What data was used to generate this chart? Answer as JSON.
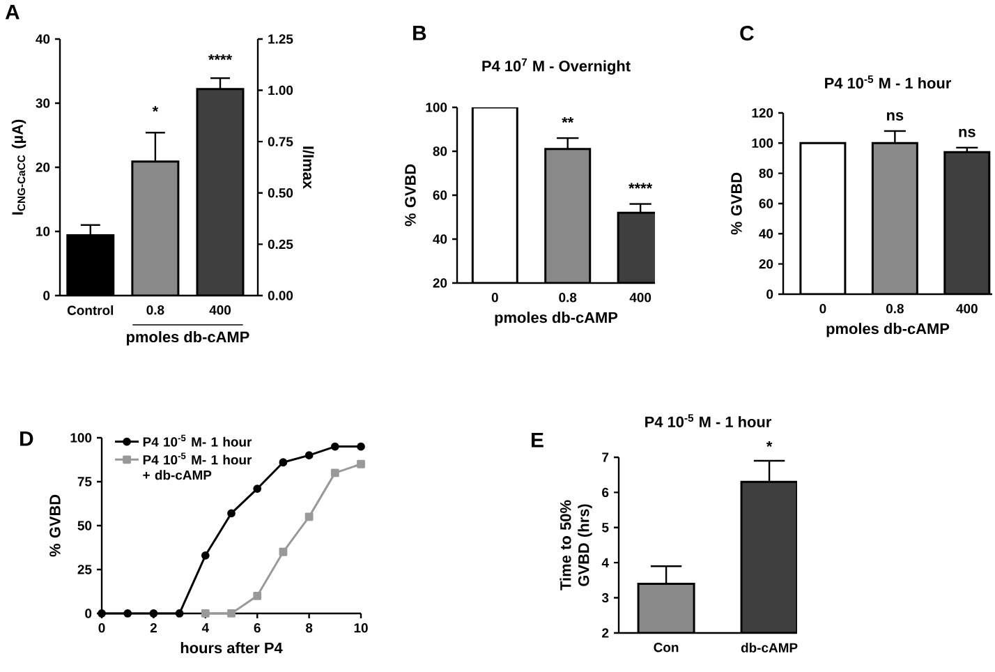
{
  "chart_data": [
    {
      "type": "bar",
      "categories": [
        "Control",
        "0.8",
        "400"
      ],
      "values": [
        9.4,
        20.9,
        32.2
      ],
      "colors": [
        "#000000",
        "#8a8a8a",
        "#3f3f3f"
      ],
      "errors": [
        [
          9.4,
          11.0
        ],
        [
          20.9,
          25.4
        ],
        [
          32.2,
          33.9
        ]
      ],
      "ylim": [
        0,
        40
      ],
      "yticks": [
        0,
        10,
        20,
        30,
        40
      ],
      "y2lim": [
        0,
        1.25
      ],
      "y2ticks": [
        {
          "value": 0,
          "label": "0.00"
        },
        {
          "value": 0.25,
          "label": "0.25"
        },
        {
          "value": 0.5,
          "label": "0.50"
        },
        {
          "value": 0.75,
          "label": "0.75"
        },
        {
          "value": 1,
          "label": "1.00"
        },
        {
          "value": 1.25,
          "label": "1.25"
        }
      ],
      "ylabel": "I$_{CNG-CaCC}$ (µA)",
      "y2label": "I/Imax",
      "xlabel": "pmoles db-cAMP",
      "annotations": [
        "A",
        "*",
        "****"
      ]
    },
    {
      "type": "bar",
      "title": "P4 10$^{7}$  M - Overnight",
      "categories": [
        "0",
        "0.8",
        "400"
      ],
      "values": [
        100,
        81,
        52
      ],
      "colors": [
        "#ffffff",
        "#8a8a8a",
        "#3f3f3f"
      ],
      "errors": [
        null,
        [
          81,
          86
        ],
        [
          52,
          56
        ]
      ],
      "ylim": [
        20,
        100
      ],
      "yticks": [
        20,
        40,
        60,
        80,
        100
      ],
      "ylabel": "% GVBD",
      "xlabel": "pmoles db-cAMP",
      "annotations": [
        "B",
        "**",
        "****"
      ]
    },
    {
      "type": "bar",
      "title": "P4 10$^{-5}$ M - 1 hour",
      "categories": [
        "0",
        "0.8",
        "400"
      ],
      "values": [
        100,
        100,
        94
      ],
      "colors": [
        "#ffffff",
        "#8a8a8a",
        "#3f3f3f"
      ],
      "errors": [
        null,
        [
          100,
          108
        ],
        [
          94,
          97
        ]
      ],
      "ylim": [
        0,
        120
      ],
      "yticks": [
        0,
        20,
        40,
        60,
        80,
        100,
        120
      ],
      "ylabel": "% GVBD",
      "xlabel": "pmoles db-cAMP",
      "annotations": [
        "C",
        "ns",
        "ns"
      ]
    },
    {
      "type": "line",
      "x": [
        0,
        1,
        2,
        3,
        4,
        5,
        6,
        7,
        8,
        9,
        10
      ],
      "series": [
        {
          "name": "P4 10$^{-5}$ M- 1 hour",
          "color": "#000000",
          "marker": "circle",
          "values": [
            0,
            0,
            0,
            0,
            33,
            57,
            71,
            86,
            90,
            95,
            95
          ]
        },
        {
          "name": "P4 10$^{-5}$ M- 1 hour + db-cAMP",
          "color": "#999999",
          "marker": "square",
          "x": [
            4,
            5,
            6,
            7,
            8,
            9,
            10
          ],
          "values": [
            0,
            0,
            10,
            35,
            55,
            80,
            85
          ]
        }
      ],
      "xlim": [
        0,
        10
      ],
      "xticks": [
        0,
        2,
        4,
        6,
        8,
        10
      ],
      "ylim": [
        0,
        100
      ],
      "yticks": [
        0,
        25,
        50,
        75,
        100
      ],
      "xlabel": "hours after P4",
      "ylabel": "% GVBD",
      "legend": "top left",
      "annotations": [
        "D"
      ]
    },
    {
      "type": "bar",
      "title": "P4 10$^{-5}$  M - 1 hour",
      "categories": [
        "Con",
        "db-cAMP"
      ],
      "values": [
        3.4,
        6.3
      ],
      "colors": [
        "#8a8a8a",
        "#3f3f3f"
      ],
      "errors": [
        [
          3.4,
          3.9
        ],
        [
          6.3,
          6.9
        ]
      ],
      "ylim": [
        2,
        7
      ],
      "yticks": [
        2,
        3,
        4,
        5,
        6,
        7
      ],
      "ylabel": "Time to 50% GVBD (hrs)",
      "annotations": [
        "E",
        "*"
      ]
    }
  ]
}
